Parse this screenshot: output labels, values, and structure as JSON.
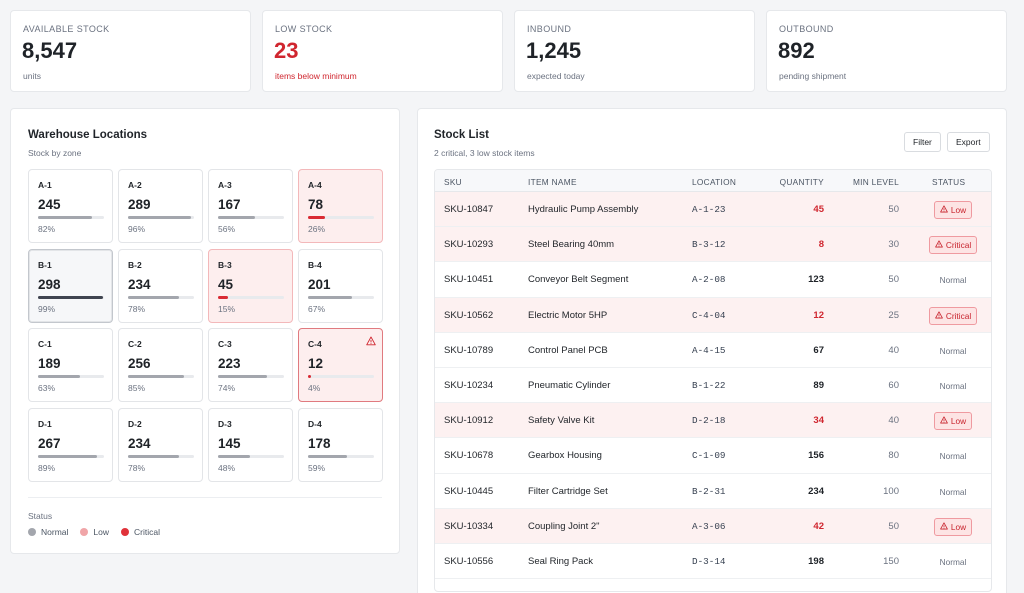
{
  "kpis": [
    {
      "label": "AVAILABLE STOCK",
      "value": "8,547",
      "sub": "units",
      "alert": false
    },
    {
      "label": "LOW STOCK",
      "value": "23",
      "sub": "items below minimum",
      "alert": true
    },
    {
      "label": "INBOUND",
      "value": "1,245",
      "sub": "expected today",
      "alert": false
    },
    {
      "label": "OUTBOUND",
      "value": "892",
      "sub": "pending shipment",
      "alert": false
    }
  ],
  "warehouse": {
    "title": "Warehouse Locations",
    "subtitle": "Stock by zone",
    "zones": [
      {
        "name": "A-1",
        "value": "245",
        "pct": "82%",
        "fill": 0.82,
        "state": "normal"
      },
      {
        "name": "A-2",
        "value": "289",
        "pct": "96%",
        "fill": 0.96,
        "state": "normal"
      },
      {
        "name": "A-3",
        "value": "167",
        "pct": "56%",
        "fill": 0.56,
        "state": "normal"
      },
      {
        "name": "A-4",
        "value": "78",
        "pct": "26%",
        "fill": 0.26,
        "state": "low"
      },
      {
        "name": "B-1",
        "value": "298",
        "pct": "99%",
        "fill": 0.99,
        "state": "selected"
      },
      {
        "name": "B-2",
        "value": "234",
        "pct": "78%",
        "fill": 0.78,
        "state": "normal"
      },
      {
        "name": "B-3",
        "value": "45",
        "pct": "15%",
        "fill": 0.15,
        "state": "low"
      },
      {
        "name": "B-4",
        "value": "201",
        "pct": "67%",
        "fill": 0.67,
        "state": "normal"
      },
      {
        "name": "C-1",
        "value": "189",
        "pct": "63%",
        "fill": 0.63,
        "state": "normal"
      },
      {
        "name": "C-2",
        "value": "256",
        "pct": "85%",
        "fill": 0.85,
        "state": "normal"
      },
      {
        "name": "C-3",
        "value": "223",
        "pct": "74%",
        "fill": 0.74,
        "state": "normal"
      },
      {
        "name": "C-4",
        "value": "12",
        "pct": "4%",
        "fill": 0.04,
        "state": "critical"
      },
      {
        "name": "D-1",
        "value": "267",
        "pct": "89%",
        "fill": 0.89,
        "state": "normal"
      },
      {
        "name": "D-2",
        "value": "234",
        "pct": "78%",
        "fill": 0.78,
        "state": "normal"
      },
      {
        "name": "D-3",
        "value": "145",
        "pct": "48%",
        "fill": 0.48,
        "state": "normal"
      },
      {
        "name": "D-4",
        "value": "178",
        "pct": "59%",
        "fill": 0.59,
        "state": "normal"
      }
    ],
    "legend_title": "Status",
    "legend": [
      {
        "label": "Normal",
        "color": "#a3a6ad"
      },
      {
        "label": "Low",
        "color": "#f0a5a8"
      },
      {
        "label": "Critical",
        "color": "#e0323a"
      }
    ]
  },
  "stock_list": {
    "title": "Stock List",
    "subtitle": "2 critical, 3 low stock items",
    "filter_label": "Filter",
    "export_label": "Export",
    "columns": {
      "sku": "SKU",
      "name": "ITEM NAME",
      "location": "LOCATION",
      "quantity": "QUANTITY",
      "min": "MIN LEVEL",
      "status": "STATUS"
    },
    "rows": [
      {
        "sku": "SKU-10847",
        "name": "Hydraulic Pump Assembly",
        "location": "A-1-23",
        "quantity": "45",
        "min": "50",
        "status": "Low"
      },
      {
        "sku": "SKU-10293",
        "name": "Steel Bearing 40mm",
        "location": "B-3-12",
        "quantity": "8",
        "min": "30",
        "status": "Critical"
      },
      {
        "sku": "SKU-10451",
        "name": "Conveyor Belt Segment",
        "location": "A-2-08",
        "quantity": "123",
        "min": "50",
        "status": "Normal"
      },
      {
        "sku": "SKU-10562",
        "name": "Electric Motor 5HP",
        "location": "C-4-04",
        "quantity": "12",
        "min": "25",
        "status": "Critical"
      },
      {
        "sku": "SKU-10789",
        "name": "Control Panel PCB",
        "location": "A-4-15",
        "quantity": "67",
        "min": "40",
        "status": "Normal"
      },
      {
        "sku": "SKU-10234",
        "name": "Pneumatic Cylinder",
        "location": "B-1-22",
        "quantity": "89",
        "min": "60",
        "status": "Normal"
      },
      {
        "sku": "SKU-10912",
        "name": "Safety Valve Kit",
        "location": "D-2-18",
        "quantity": "34",
        "min": "40",
        "status": "Low"
      },
      {
        "sku": "SKU-10678",
        "name": "Gearbox Housing",
        "location": "C-1-09",
        "quantity": "156",
        "min": "80",
        "status": "Normal"
      },
      {
        "sku": "SKU-10445",
        "name": "Filter Cartridge Set",
        "location": "B-2-31",
        "quantity": "234",
        "min": "100",
        "status": "Normal"
      },
      {
        "sku": "SKU-10334",
        "name": "Coupling Joint 2\"",
        "location": "A-3-06",
        "quantity": "42",
        "min": "50",
        "status": "Low"
      },
      {
        "sku": "SKU-10556",
        "name": "Seal Ring Pack",
        "location": "D-3-14",
        "quantity": "198",
        "min": "150",
        "status": "Normal"
      }
    ]
  },
  "colors": {
    "accent_red": "#d0262f",
    "alert_row": "#fdf1f1",
    "text": "#1f2328",
    "muted": "#6b7280"
  },
  "icons": {
    "warning": "warning-triangle-icon"
  }
}
